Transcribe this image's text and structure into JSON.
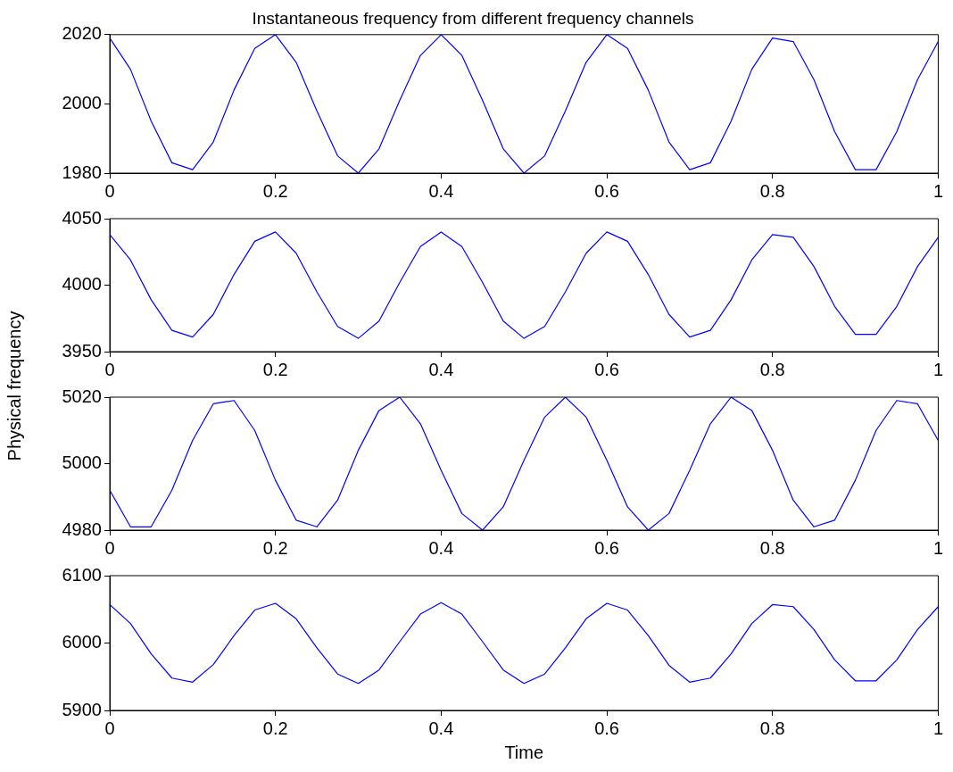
{
  "chart_data": [
    {
      "type": "line",
      "title": "Instantaneous frequency from different frequency channels",
      "x": [
        0,
        0.025,
        0.05,
        0.075,
        0.1,
        0.125,
        0.15,
        0.175,
        0.2,
        0.225,
        0.25,
        0.275,
        0.3,
        0.325,
        0.35,
        0.375,
        0.4,
        0.425,
        0.45,
        0.475,
        0.5,
        0.525,
        0.55,
        0.575,
        0.6,
        0.625,
        0.65,
        0.675,
        0.7,
        0.725,
        0.75,
        0.775,
        0.8,
        0.825,
        0.85,
        0.875,
        0.9,
        0.925,
        0.95,
        0.975,
        1
      ],
      "series": [
        {
          "color": "#0000ff",
          "values": [
            2019,
            2010,
            1995,
            1983,
            1981,
            1989,
            2004,
            2016,
            2020,
            2012,
            1998,
            1985,
            1980,
            1987,
            2001,
            2014,
            2020,
            2014,
            2001,
            1987,
            1980,
            1985,
            1998,
            2012,
            2020,
            2016,
            2004,
            1989,
            1981,
            1983,
            1995,
            2010,
            2019,
            2018,
            2007,
            1992,
            1981,
            1981,
            1992,
            2007,
            2018
          ]
        }
      ],
      "xlim": [
        0,
        1
      ],
      "xticks": [
        0,
        0.2,
        0.4,
        0.6,
        0.8,
        1
      ],
      "ylim": [
        1980,
        2020
      ],
      "yticks": [
        1980,
        2000,
        2020
      ],
      "marker": "none",
      "line_style": "solid"
    },
    {
      "type": "line",
      "ylabel": "Physical frequency",
      "x": [
        0,
        0.025,
        0.05,
        0.075,
        0.1,
        0.125,
        0.15,
        0.175,
        0.2,
        0.225,
        0.25,
        0.275,
        0.3,
        0.325,
        0.35,
        0.375,
        0.4,
        0.425,
        0.45,
        0.475,
        0.5,
        0.525,
        0.55,
        0.575,
        0.6,
        0.625,
        0.65,
        0.675,
        0.7,
        0.725,
        0.75,
        0.775,
        0.8,
        0.825,
        0.85,
        0.875,
        0.9,
        0.925,
        0.95,
        0.975,
        1
      ],
      "series": [
        {
          "color": "#0000ff",
          "values": [
            4038,
            4019,
            3989,
            3966,
            3961,
            3978,
            4008,
            4033,
            4040,
            4024,
            3995,
            3969,
            3960,
            3973,
            4002,
            4029,
            4040,
            4029,
            4002,
            3973,
            3960,
            3969,
            3995,
            4024,
            4040,
            4033,
            4008,
            3978,
            3961,
            3966,
            3989,
            4019,
            4038,
            4036,
            4014,
            3984,
            3963,
            3963,
            3984,
            4014,
            4036
          ]
        }
      ],
      "xlim": [
        0,
        1
      ],
      "xticks": [
        0,
        0.2,
        0.4,
        0.6,
        0.8,
        1
      ],
      "ylim": [
        3950,
        4050
      ],
      "yticks": [
        3950,
        4000,
        4050
      ],
      "marker": "none",
      "line_style": "solid"
    },
    {
      "type": "line",
      "x": [
        0,
        0.025,
        0.05,
        0.075,
        0.1,
        0.125,
        0.15,
        0.175,
        0.2,
        0.225,
        0.25,
        0.275,
        0.3,
        0.325,
        0.35,
        0.375,
        0.4,
        0.425,
        0.45,
        0.475,
        0.5,
        0.525,
        0.55,
        0.575,
        0.6,
        0.625,
        0.65,
        0.675,
        0.7,
        0.725,
        0.75,
        0.775,
        0.8,
        0.825,
        0.85,
        0.875,
        0.9,
        0.925,
        0.95,
        0.975,
        1
      ],
      "series": [
        {
          "color": "#0000ff",
          "values": [
            4992,
            4981,
            4981,
            4992,
            5007,
            5018,
            5019,
            5010,
            4995,
            4983,
            4981,
            4989,
            5004,
            5016,
            5020,
            5012,
            4998,
            4985,
            4980,
            4987,
            5001,
            5014,
            5020,
            5014,
            5001,
            4987,
            4980,
            4985,
            4998,
            5012,
            5020,
            5016,
            5004,
            4989,
            4981,
            4983,
            4995,
            5010,
            5019,
            5018,
            5007
          ]
        }
      ],
      "xlim": [
        0,
        1
      ],
      "xticks": [
        0,
        0.2,
        0.4,
        0.6,
        0.8,
        1
      ],
      "ylim": [
        4980,
        5020
      ],
      "yticks": [
        4980,
        5000,
        5020
      ],
      "marker": "none",
      "line_style": "solid"
    },
    {
      "type": "line",
      "xlabel": "Time",
      "x": [
        0,
        0.025,
        0.05,
        0.075,
        0.1,
        0.125,
        0.15,
        0.175,
        0.2,
        0.225,
        0.25,
        0.275,
        0.3,
        0.325,
        0.35,
        0.375,
        0.4,
        0.425,
        0.45,
        0.475,
        0.5,
        0.525,
        0.55,
        0.575,
        0.6,
        0.625,
        0.65,
        0.675,
        0.7,
        0.725,
        0.75,
        0.775,
        0.8,
        0.825,
        0.85,
        0.875,
        0.9,
        0.925,
        0.95,
        0.975,
        1
      ],
      "series": [
        {
          "color": "#0000ff",
          "values": [
            6057,
            6029,
            5984,
            5948,
            5942,
            5968,
            6011,
            6049,
            6059,
            6036,
            5993,
            5954,
            5940,
            5960,
            6002,
            6043,
            6060,
            6043,
            6002,
            5960,
            5940,
            5954,
            5993,
            6036,
            6059,
            6049,
            6011,
            5967,
            5942,
            5948,
            5984,
            6029,
            6057,
            6054,
            6020,
            5975,
            5944,
            5944,
            5975,
            6020,
            6054
          ]
        }
      ],
      "xlim": [
        0,
        1
      ],
      "xticks": [
        0,
        0.2,
        0.4,
        0.6,
        0.8,
        1
      ],
      "ylim": [
        5900,
        6100
      ],
      "yticks": [
        5900,
        6000,
        6100
      ],
      "marker": "none",
      "line_style": "solid"
    }
  ]
}
